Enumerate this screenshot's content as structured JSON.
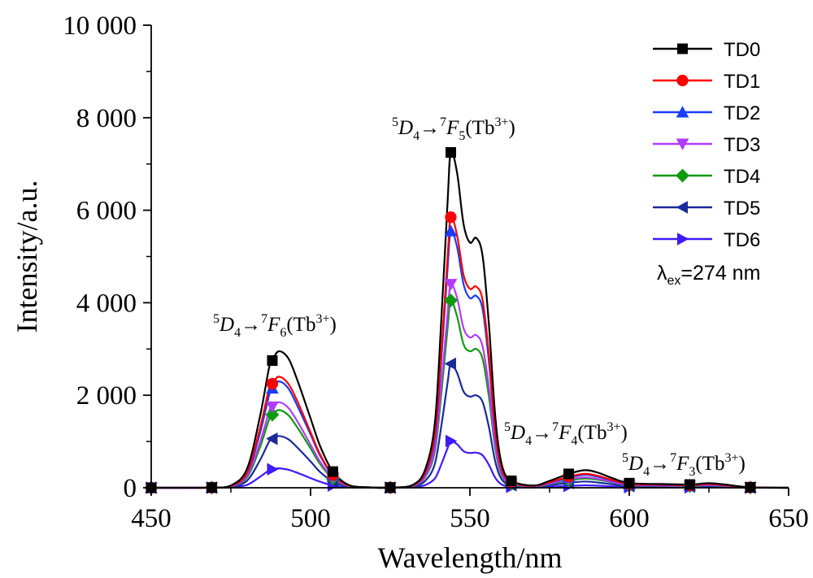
{
  "chart_data": {
    "type": "line",
    "xlabel": "Wavelength/nm",
    "ylabel": "Intensity/a.u.",
    "xlim": [
      450,
      650
    ],
    "ylim": [
      0,
      10000
    ],
    "x_ticks": [
      450,
      500,
      550,
      600,
      650
    ],
    "y_ticks": [
      0,
      2000,
      4000,
      6000,
      8000,
      10000
    ],
    "x_tick_labels": [
      "450",
      "500",
      "550",
      "600",
      "650"
    ],
    "y_tick_labels": [
      "0",
      "2 000",
      "4 000",
      "6 000",
      "8 000",
      "10 000"
    ],
    "legend_position": "top-right",
    "marker_x": [
      450,
      469,
      488,
      507,
      525,
      544,
      563,
      581,
      600,
      619,
      638
    ],
    "x": [
      450,
      460,
      469,
      475,
      480,
      484,
      487,
      488,
      490,
      493,
      496,
      500,
      503,
      507,
      512,
      518,
      525,
      532,
      536,
      539,
      541,
      543,
      544,
      546,
      548,
      550,
      552,
      554,
      556,
      558,
      560,
      563,
      570,
      575,
      581,
      586,
      590,
      595,
      600,
      610,
      619,
      625,
      630,
      638,
      650
    ],
    "series": [
      {
        "name": "TD0",
        "color": "#000000",
        "marker": "square",
        "values": [
          0,
          0,
          5,
          50,
          400,
          1500,
          2600,
          2750,
          2950,
          2800,
          2300,
          1500,
          900,
          350,
          60,
          10,
          5,
          60,
          400,
          1400,
          3600,
          6200,
          7250,
          6800,
          5700,
          5300,
          5400,
          5000,
          3500,
          1500,
          500,
          150,
          50,
          150,
          300,
          380,
          330,
          200,
          100,
          80,
          70,
          100,
          70,
          10,
          0
        ]
      },
      {
        "name": "TD1",
        "color": "#ff0000",
        "marker": "circle",
        "values": [
          0,
          0,
          5,
          40,
          320,
          1250,
          2150,
          2250,
          2400,
          2250,
          1850,
          1200,
          720,
          280,
          50,
          8,
          4,
          50,
          330,
          1150,
          2900,
          5000,
          5850,
          5450,
          4600,
          4300,
          4350,
          4050,
          2850,
          1200,
          400,
          120,
          40,
          120,
          240,
          300,
          260,
          160,
          80,
          65,
          55,
          80,
          55,
          8,
          0
        ]
      },
      {
        "name": "TD2",
        "color": "#1a3cff",
        "marker": "triangle-up",
        "values": [
          0,
          0,
          4,
          38,
          300,
          1150,
          2000,
          2150,
          2300,
          2150,
          1750,
          1150,
          690,
          270,
          48,
          8,
          4,
          48,
          310,
          1080,
          2750,
          4750,
          5550,
          5200,
          4400,
          4100,
          4150,
          3850,
          2700,
          1150,
          380,
          115,
          38,
          110,
          220,
          280,
          240,
          150,
          75,
          60,
          50,
          75,
          50,
          8,
          0
        ]
      },
      {
        "name": "TD3",
        "color": "#b03cff",
        "marker": "triangle-down",
        "values": [
          0,
          0,
          3,
          30,
          250,
          950,
          1650,
          1750,
          1850,
          1730,
          1420,
          930,
          560,
          220,
          40,
          6,
          3,
          38,
          250,
          860,
          2200,
          3780,
          4400,
          4100,
          3450,
          3250,
          3300,
          3050,
          2150,
          910,
          300,
          90,
          30,
          90,
          180,
          225,
          195,
          120,
          60,
          48,
          40,
          60,
          40,
          6,
          0
        ]
      },
      {
        "name": "TD4",
        "color": "#109a10",
        "marker": "diamond",
        "values": [
          0,
          0,
          3,
          28,
          220,
          850,
          1480,
          1580,
          1680,
          1570,
          1290,
          850,
          510,
          200,
          36,
          5,
          3,
          34,
          230,
          790,
          2010,
          3460,
          4050,
          3700,
          3100,
          2950,
          3000,
          2780,
          1950,
          830,
          270,
          80,
          27,
          80,
          160,
          200,
          175,
          110,
          55,
          44,
          36,
          55,
          36,
          5,
          0
        ]
      },
      {
        "name": "TD5",
        "color": "#1a2a9a",
        "marker": "triangle-left",
        "values": [
          0,
          0,
          2,
          18,
          150,
          580,
          1000,
          1060,
          1120,
          1050,
          860,
          570,
          340,
          135,
          24,
          4,
          2,
          22,
          150,
          520,
          1320,
          2280,
          2680,
          2480,
          2080,
          1970,
          2000,
          1850,
          1300,
          550,
          180,
          55,
          18,
          55,
          105,
          135,
          115,
          72,
          36,
          29,
          24,
          36,
          24,
          4,
          0
        ]
      },
      {
        "name": "TD6",
        "color": "#3d1aff",
        "marker": "triangle-right",
        "values": [
          0,
          0,
          1,
          8,
          60,
          230,
          380,
          400,
          420,
          390,
          320,
          210,
          130,
          50,
          9,
          1,
          1,
          9,
          60,
          200,
          500,
          860,
          1010,
          940,
          790,
          750,
          760,
          700,
          490,
          210,
          70,
          20,
          7,
          20,
          40,
          52,
          45,
          28,
          14,
          11,
          9,
          14,
          9,
          1,
          0
        ]
      }
    ],
    "annotations": {
      "f6": {
        "lead": "5",
        "state": "D",
        "sub": "4",
        "arrow": "→",
        "up": "7",
        "fstate": "F",
        "fsub": "6",
        "ion": "(Tb",
        "charge": "3+",
        "close": ")"
      },
      "f5": {
        "lead": "5",
        "state": "D",
        "sub": "4",
        "arrow": "→",
        "up": "7",
        "fstate": "F",
        "fsub": "5",
        "ion": "(Tb",
        "charge": "3+",
        "close": ")"
      },
      "f4": {
        "lead": "5",
        "state": "D",
        "sub": "4",
        "arrow": "→",
        "up": "7",
        "fstate": "F",
        "fsub": "4",
        "ion": "(Tb",
        "charge": "3+",
        "close": ")"
      },
      "f3": {
        "lead": "5",
        "state": "D",
        "sub": "4",
        "arrow": "→",
        "up": "7",
        "fstate": "F",
        "fsub": "3",
        "ion": "(Tb",
        "charge": "3+",
        "close": ")"
      }
    },
    "excitation": {
      "symbol": "λ",
      "sub": "ex",
      "text": "=274 nm"
    }
  }
}
